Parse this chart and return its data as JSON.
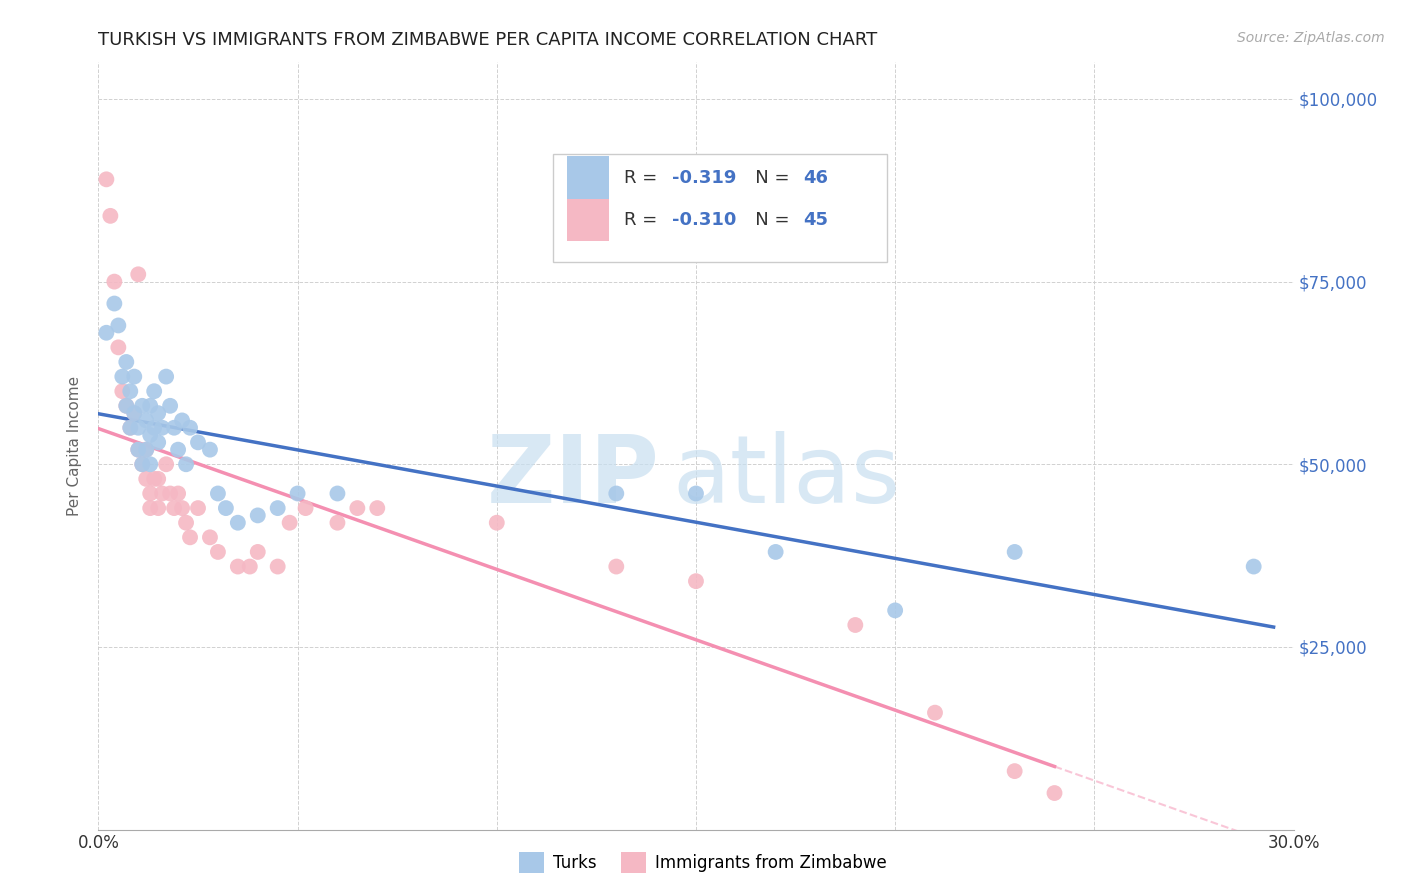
{
  "title": "TURKISH VS IMMIGRANTS FROM ZIMBABWE PER CAPITA INCOME CORRELATION CHART",
  "source": "Source: ZipAtlas.com",
  "ylabel": "Per Capita Income",
  "xlim": [
    0.0,
    0.3
  ],
  "ylim": [
    0,
    105000
  ],
  "xticks": [
    0.0,
    0.05,
    0.1,
    0.15,
    0.2,
    0.25,
    0.3
  ],
  "xtick_labels": [
    "0.0%",
    "",
    "",
    "",
    "",
    "",
    "30.0%"
  ],
  "yticks": [
    0,
    25000,
    50000,
    75000,
    100000
  ],
  "ytick_labels_right": [
    "",
    "$25,000",
    "$50,000",
    "$75,000",
    "$100,000"
  ],
  "legend_label1": "Turks",
  "legend_label2": "Immigrants from Zimbabwe",
  "turks_color": "#a8c8e8",
  "zimbabwe_color": "#f5b8c4",
  "turks_line_color": "#4472c4",
  "zimbabwe_line_color": "#f48fb1",
  "background_color": "#ffffff",
  "grid_color": "#cccccc",
  "turks_x": [
    0.002,
    0.004,
    0.005,
    0.006,
    0.007,
    0.007,
    0.008,
    0.008,
    0.009,
    0.009,
    0.01,
    0.01,
    0.011,
    0.011,
    0.012,
    0.012,
    0.013,
    0.013,
    0.013,
    0.014,
    0.014,
    0.015,
    0.015,
    0.016,
    0.017,
    0.018,
    0.019,
    0.02,
    0.021,
    0.022,
    0.023,
    0.025,
    0.028,
    0.03,
    0.032,
    0.035,
    0.04,
    0.045,
    0.05,
    0.06,
    0.13,
    0.15,
    0.17,
    0.2,
    0.23,
    0.29
  ],
  "turks_y": [
    68000,
    72000,
    69000,
    62000,
    64000,
    58000,
    60000,
    55000,
    62000,
    57000,
    55000,
    52000,
    58000,
    50000,
    56000,
    52000,
    58000,
    54000,
    50000,
    60000,
    55000,
    57000,
    53000,
    55000,
    62000,
    58000,
    55000,
    52000,
    56000,
    50000,
    55000,
    53000,
    52000,
    46000,
    44000,
    42000,
    43000,
    44000,
    46000,
    46000,
    46000,
    46000,
    38000,
    30000,
    38000,
    36000
  ],
  "zimbabwe_x": [
    0.002,
    0.003,
    0.004,
    0.005,
    0.006,
    0.007,
    0.008,
    0.009,
    0.01,
    0.011,
    0.012,
    0.012,
    0.013,
    0.013,
    0.014,
    0.015,
    0.015,
    0.016,
    0.017,
    0.018,
    0.019,
    0.02,
    0.021,
    0.022,
    0.023,
    0.025,
    0.028,
    0.03,
    0.035,
    0.038,
    0.04,
    0.045,
    0.048,
    0.052,
    0.06,
    0.065,
    0.07,
    0.1,
    0.13,
    0.15,
    0.19,
    0.21,
    0.23,
    0.24,
    0.01
  ],
  "zimbabwe_y": [
    89000,
    84000,
    75000,
    66000,
    60000,
    58000,
    55000,
    57000,
    52000,
    50000,
    48000,
    52000,
    46000,
    44000,
    48000,
    48000,
    44000,
    46000,
    50000,
    46000,
    44000,
    46000,
    44000,
    42000,
    40000,
    44000,
    40000,
    38000,
    36000,
    36000,
    38000,
    36000,
    42000,
    44000,
    42000,
    44000,
    44000,
    42000,
    36000,
    34000,
    28000,
    16000,
    8000,
    5000,
    76000
  ],
  "turks_R": "-0.319",
  "turks_N": "46",
  "zim_R": "-0.310",
  "zim_N": "45"
}
